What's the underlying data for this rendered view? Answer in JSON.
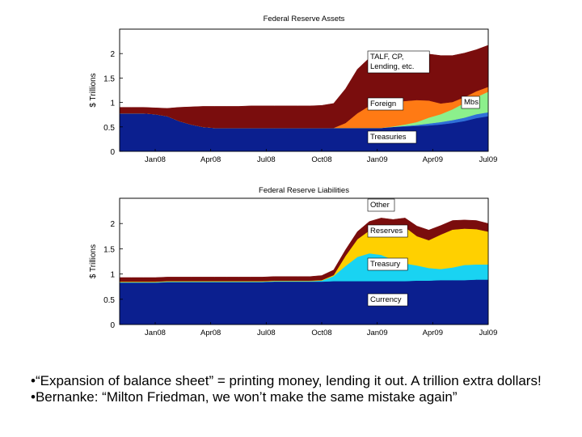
{
  "chart_data": [
    {
      "type": "area",
      "title": "Federal Reserve Assets",
      "ylabel": "$ Trillions",
      "xlabel": "",
      "ylim": [
        0,
        2.5
      ],
      "yticks": [
        "0",
        "0.5",
        "1",
        "1.5",
        "2"
      ],
      "xticks": [
        "Jan08",
        "Apr08",
        "Jul08",
        "Oct08",
        "Jan09",
        "Apr09",
        "Jul09"
      ],
      "stacked": true,
      "series": [
        {
          "name": "Treasuries",
          "color": "#0b1f8f",
          "values": [
            0.78,
            0.78,
            0.78,
            0.76,
            0.72,
            0.62,
            0.55,
            0.5,
            0.48,
            0.48,
            0.48,
            0.48,
            0.48,
            0.48,
            0.48,
            0.48,
            0.48,
            0.48,
            0.48,
            0.48,
            0.48,
            0.48,
            0.48,
            0.5,
            0.51,
            0.52,
            0.53,
            0.55,
            0.58,
            0.62,
            0.68,
            0.72
          ]
        },
        {
          "name": "Mbs",
          "color": "#2f6fd8",
          "values": [
            0,
            0,
            0,
            0,
            0,
            0,
            0,
            0,
            0,
            0,
            0,
            0,
            0,
            0,
            0,
            0,
            0,
            0,
            0,
            0,
            0,
            0,
            0,
            0,
            0.01,
            0.02,
            0.04,
            0.05,
            0.06,
            0.07,
            0.08,
            0.08
          ]
        },
        {
          "name": "",
          "color": "#8cf08c",
          "values": [
            0,
            0,
            0,
            0,
            0,
            0,
            0,
            0,
            0,
            0,
            0,
            0,
            0,
            0,
            0,
            0,
            0,
            0,
            0,
            0,
            0,
            0,
            0,
            0.01,
            0.03,
            0.06,
            0.12,
            0.16,
            0.22,
            0.3,
            0.35,
            0.42
          ]
        },
        {
          "name": "Foreign",
          "color": "#ff7a14",
          "values": [
            0,
            0,
            0,
            0,
            0,
            0,
            0,
            0,
            0,
            0,
            0,
            0,
            0,
            0,
            0,
            0,
            0,
            0,
            0,
            0.1,
            0.3,
            0.45,
            0.5,
            0.5,
            0.48,
            0.45,
            0.35,
            0.22,
            0.15,
            0.12,
            0.12,
            0.1
          ]
        },
        {
          "name": "TALF, CP, Lending, etc.",
          "color": "#7a0d0d",
          "values": [
            0.12,
            0.12,
            0.12,
            0.13,
            0.16,
            0.28,
            0.36,
            0.42,
            0.44,
            0.44,
            0.44,
            0.45,
            0.45,
            0.45,
            0.45,
            0.45,
            0.45,
            0.46,
            0.5,
            0.7,
            0.9,
            0.98,
            1.0,
            0.98,
            0.98,
            0.95,
            0.95,
            0.98,
            0.95,
            0.9,
            0.85,
            0.85
          ]
        }
      ]
    },
    {
      "type": "area",
      "title": "Federal Reserve Liabilities",
      "ylabel": "$ Trillions",
      "xlabel": "",
      "ylim": [
        0,
        2.5
      ],
      "yticks": [
        "0",
        "0.5",
        "1",
        "1.5",
        "2"
      ],
      "xticks": [
        "Jan08",
        "Apr08",
        "Jul08",
        "Oct08",
        "Jan09",
        "Apr09",
        "Jul09"
      ],
      "stacked": true,
      "series": [
        {
          "name": "Currency",
          "color": "#0b1f8f",
          "values": [
            0.83,
            0.83,
            0.83,
            0.83,
            0.84,
            0.84,
            0.84,
            0.84,
            0.84,
            0.84,
            0.84,
            0.84,
            0.84,
            0.85,
            0.85,
            0.85,
            0.85,
            0.85,
            0.86,
            0.86,
            0.86,
            0.86,
            0.86,
            0.86,
            0.86,
            0.87,
            0.87,
            0.88,
            0.88,
            0.88,
            0.89,
            0.89
          ]
        },
        {
          "name": "Treasury",
          "color": "#19d3f2",
          "values": [
            0.01,
            0.01,
            0.01,
            0.01,
            0.01,
            0.01,
            0.01,
            0.01,
            0.01,
            0.01,
            0.01,
            0.01,
            0.01,
            0.01,
            0.01,
            0.01,
            0.01,
            0.02,
            0.1,
            0.3,
            0.48,
            0.55,
            0.52,
            0.42,
            0.35,
            0.3,
            0.25,
            0.22,
            0.25,
            0.3,
            0.3,
            0.3
          ]
        },
        {
          "name": "Reserves",
          "color": "#ffd000",
          "values": [
            0.01,
            0.01,
            0.01,
            0.01,
            0.01,
            0.01,
            0.01,
            0.01,
            0.01,
            0.01,
            0.01,
            0.01,
            0.01,
            0.01,
            0.01,
            0.01,
            0.01,
            0.01,
            0.02,
            0.2,
            0.35,
            0.45,
            0.55,
            0.62,
            0.72,
            0.58,
            0.55,
            0.68,
            0.75,
            0.72,
            0.7,
            0.65
          ]
        },
        {
          "name": "Other",
          "color": "#7a0d0d",
          "values": [
            0.08,
            0.08,
            0.08,
            0.08,
            0.08,
            0.08,
            0.08,
            0.08,
            0.08,
            0.08,
            0.08,
            0.08,
            0.08,
            0.08,
            0.08,
            0.08,
            0.08,
            0.09,
            0.1,
            0.12,
            0.15,
            0.18,
            0.18,
            0.18,
            0.18,
            0.2,
            0.2,
            0.18,
            0.18,
            0.17,
            0.17,
            0.16
          ]
        }
      ]
    }
  ],
  "bullets": [
    "•“Expansion of balance sheet” = printing money, lending it out. A trillion extra dollars!",
    "•Bernanke: “Milton Friedman, we won’t make the same mistake again”"
  ]
}
